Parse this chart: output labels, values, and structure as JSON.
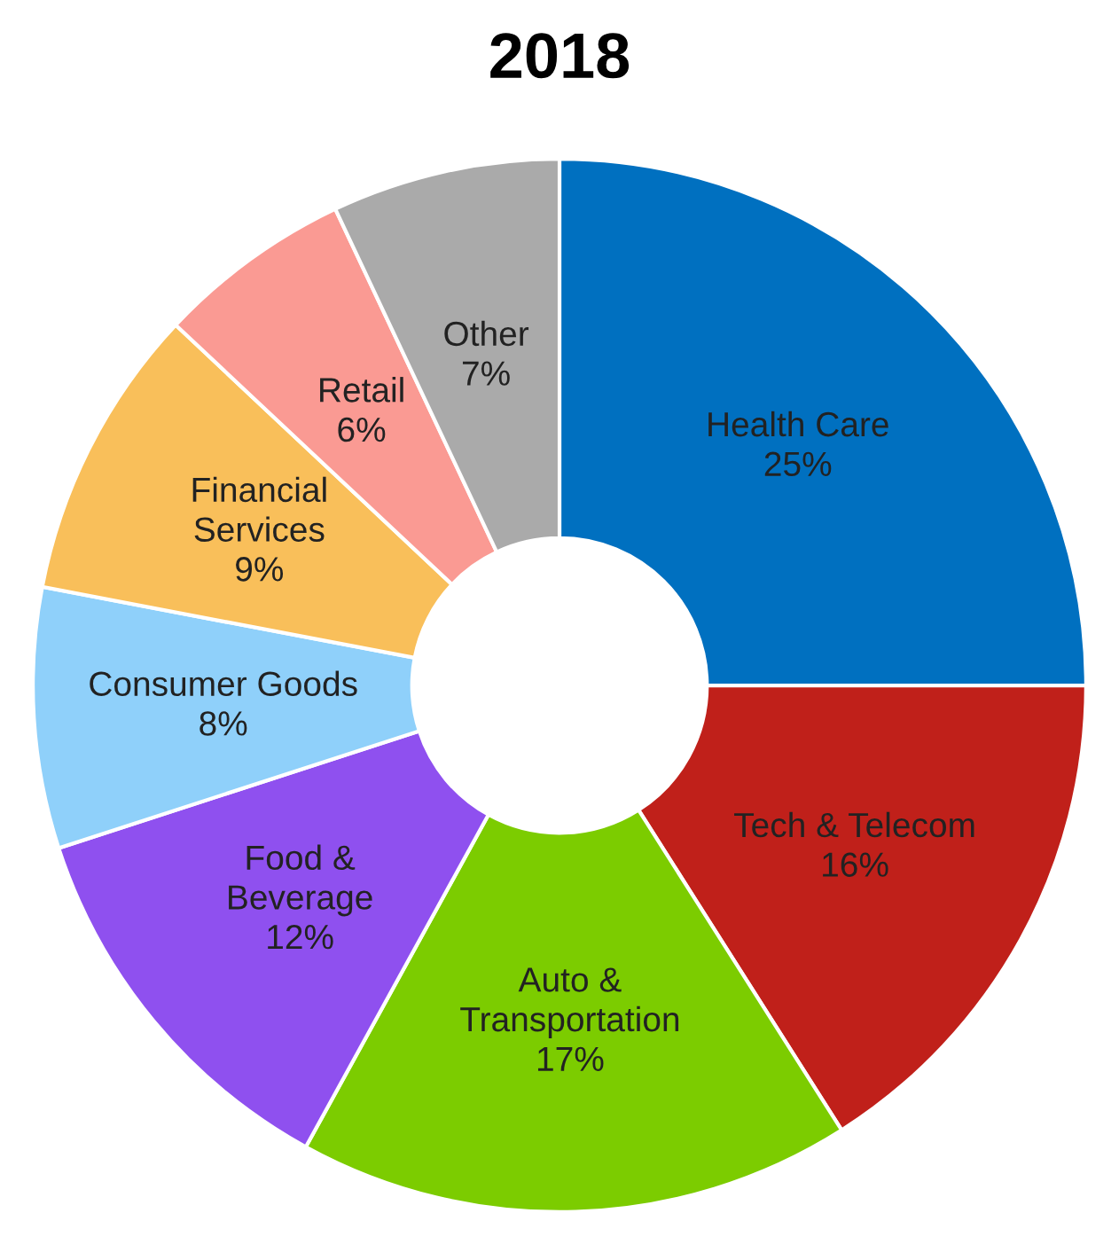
{
  "chart_data": {
    "type": "donut",
    "title": "2018",
    "categories": [
      "Health Care",
      "Tech & Telecom",
      "Auto &\nTransportation",
      "Food &\nBeverage",
      "Consumer Goods",
      "Financial\nServices",
      "Retail",
      "Other"
    ],
    "values": [
      25,
      16,
      17,
      12,
      8,
      9,
      6,
      7
    ],
    "value_labels": [
      "25%",
      "16%",
      "17%",
      "12%",
      "8%",
      "9%",
      "6%",
      "7%"
    ],
    "colors": [
      "#0070c0",
      "#c0201a",
      "#7ccc00",
      "#8f50ef",
      "#8fd0fa",
      "#f9bf5a",
      "#fa9a93",
      "#aaaaaa"
    ],
    "legend": false
  }
}
